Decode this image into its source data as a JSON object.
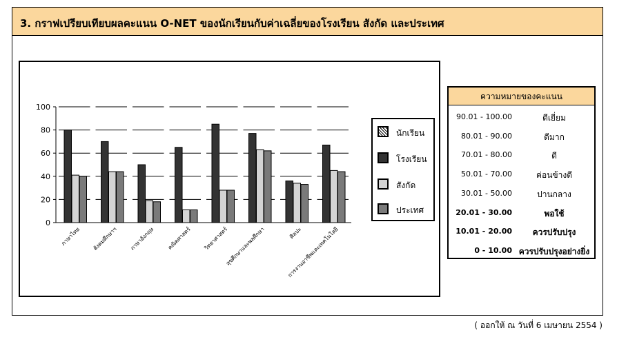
{
  "title": "3. กราฟเปรียบเทียบผลคะแนน O-NET ของนักเรียนกับค่าเฉลี่ยของโรงเรียน สังกัด และประเทศ",
  "footer": "( ออกให้ ณ วันที่ 6 เมษายน 2554 )",
  "colors": {
    "header_bg": "#FBD79D",
    "student": "hatched",
    "school": "#333333",
    "affiliation": "#D4D4D4",
    "nation": "#7A7A7A"
  },
  "chart_data": {
    "type": "bar",
    "categories": [
      "ภาษาไทย",
      "สังคมศึกษาฯ",
      "ภาษาอังกฤษ",
      "คณิตศาสตร์",
      "วิทยาศาสตร์",
      "สุขศึกษาและพลศึกษา",
      "ศิลปะ",
      "การงานอาชีพและเทคโนโลยี"
    ],
    "series": [
      {
        "name": "นักเรียน",
        "values": [
          0,
          0,
          0,
          0,
          0,
          0,
          0,
          0
        ]
      },
      {
        "name": "โรงเรียน",
        "values": [
          80,
          70,
          50,
          65,
          85,
          77,
          36,
          67
        ]
      },
      {
        "name": "สังกัด",
        "values": [
          41,
          44,
          19,
          11,
          28,
          63,
          34,
          45
        ]
      },
      {
        "name": "ประเทศ",
        "values": [
          40,
          44,
          18,
          11,
          28,
          62,
          33,
          44
        ]
      }
    ],
    "ylim": [
      0,
      100
    ],
    "yticks": [
      "0",
      "20",
      "40",
      "60",
      "80",
      "100"
    ],
    "grid": true,
    "legend_position": "right"
  },
  "scale": {
    "heading": "ความหมายของคะแนน",
    "rows": [
      {
        "range": "90.01 - 100.00",
        "level": "ดีเยี่ยม",
        "bold": false
      },
      {
        "range": "80.01 -  90.00",
        "level": "ดีมาก",
        "bold": false
      },
      {
        "range": "70.01 -  80.00",
        "level": "ดี",
        "bold": false
      },
      {
        "range": "50.01 -  70.00",
        "level": "ค่อนข้างดี",
        "bold": false
      },
      {
        "range": "30.01 -  50.00",
        "level": "ปานกลาง",
        "bold": false
      },
      {
        "range": "20.01 -  30.00",
        "level": "พอใช้",
        "bold": true
      },
      {
        "range": "10.01 -  20.00",
        "level": "ควรปรับปรุง",
        "bold": true
      },
      {
        "range": "0 -  10.00",
        "level": "ควรปรับปรุงอย่างยิ่ง",
        "bold": true
      }
    ]
  }
}
